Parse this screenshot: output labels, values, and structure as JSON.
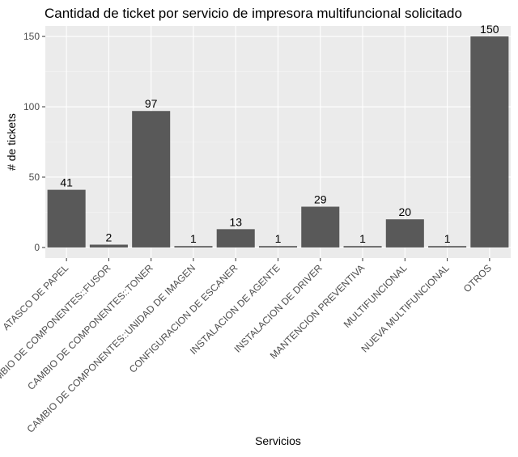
{
  "chart_data": {
    "type": "bar",
    "title": "Cantidad de ticket por servicio de impresora multifuncional solicitado",
    "xlabel": "Servicios",
    "ylabel": "# de tickets",
    "categories": [
      "ATASCO DE PAPEL",
      "CAMBIO DE COMPONENTES::FUSOR",
      "CAMBIO DE COMPONENTES::TONER",
      "CAMBIO DE COMPONENTES::UNIDAD DE IMAGEN",
      "CONFIGURACION DE ESCANER",
      "INSTALACION DE AGENTE",
      "INSTALACION DE DRIVER",
      "MANTENCION PREVENTIVA",
      "MULTIFUNCIONAL",
      "NUEVA MULTIFUNCIONAL",
      "OTROS"
    ],
    "values": [
      41,
      2,
      97,
      1,
      13,
      1,
      29,
      1,
      20,
      1,
      150
    ],
    "yticks": [
      0,
      50,
      100,
      150
    ],
    "ylim": [
      -7.5,
      157.5
    ],
    "grid": true,
    "colors": {
      "bar": "#595959",
      "panel": "#ebebeb",
      "grid_major": "#ffffff",
      "grid_minor": "#f5f5f5",
      "tick": "#333333"
    }
  }
}
